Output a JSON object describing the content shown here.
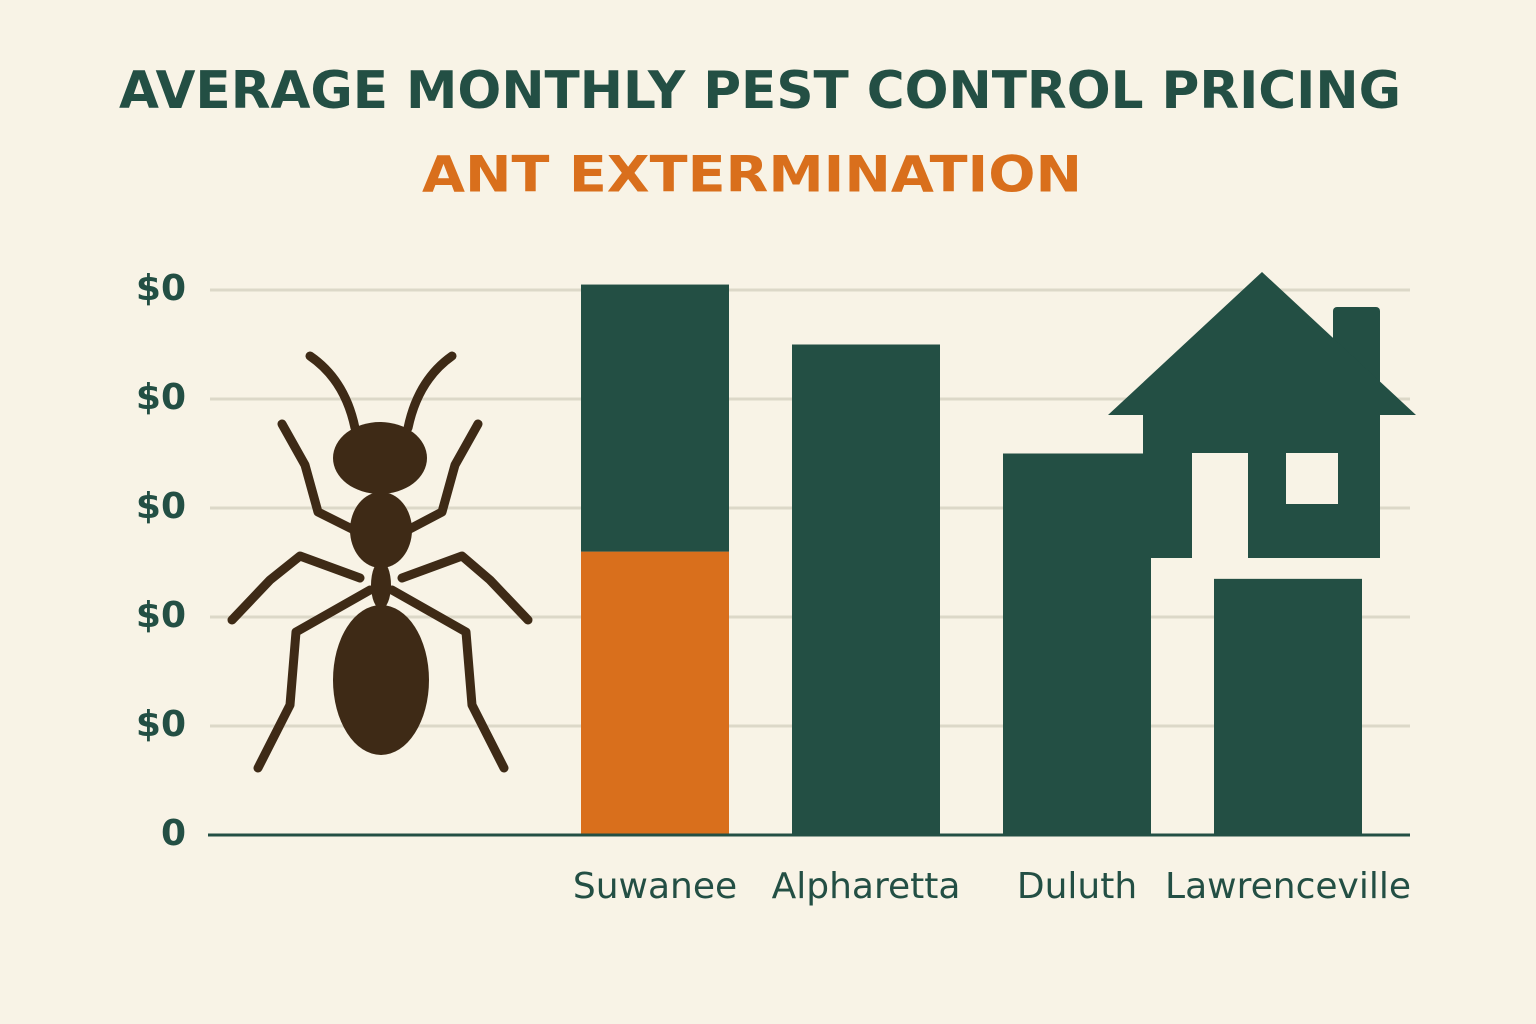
{
  "chart_data": {
    "type": "bar",
    "stacked": true,
    "title": "AVERAGE MONTHLY PEST CONTROL PRICING",
    "subtitle": "ANT EXTERMINATION",
    "categories": [
      "Suwanee",
      "Alpharetta",
      "Duluth",
      "Lawrenceville"
    ],
    "series": [
      {
        "color": "#d96f1c",
        "values": [
          2.6,
          null,
          null,
          null
        ]
      },
      {
        "color": "#234f44",
        "values": [
          2.45,
          4.5,
          3.5,
          2.35
        ]
      }
    ],
    "ylim": [
      0,
      5.2
    ],
    "yticks": [
      0,
      {
        "value": 1,
        "label": "$0"
      },
      {
        "value": 2,
        "label": "$0"
      },
      {
        "value": 3,
        "label": "$0"
      },
      {
        "value": 4,
        "label": "$0"
      },
      {
        "value": 5,
        "label": "$0"
      }
    ],
    "grid": true
  }
}
